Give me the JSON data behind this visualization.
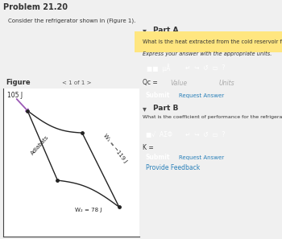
{
  "title": "Problem 21.20",
  "consider_text": "Consider the refrigerator shown in (Figure 1).",
  "figure_text": "Figure",
  "page_text": "< 1 of 1 >",
  "part_a_title": "Part A",
  "part_a_q": "What is the heat extracted from the cold reservoir for the refrigerator?",
  "part_a_sub": "Express your answer with the appropriate units.",
  "qc_label": "Qc =",
  "value_placeholder": "Value",
  "units_placeholder": "Units",
  "submit_text": "Submit",
  "request_answer": "Request Answer",
  "part_b_title": "Part B",
  "part_b_q": "What is the coefficient of performance for the refrigerator shown in the following figure?",
  "k_label": "K =",
  "provide_feedback": "Provide Feedback",
  "bg_color": "#f0f0f0",
  "white": "#ffffff",
  "light_blue_box": "#d6eaf8",
  "light_blue_border": "#aed6f1",
  "submit_btn_color": "#2980b9",
  "toolbar_color": "#5b9bd5",
  "toolbar_dark": "#4a86c8",
  "input_border": "#b0b0b0",
  "text_dark": "#333333",
  "text_mid": "#555555",
  "text_link": "#2980b9",
  "highlight_yellow": "#ffe680",
  "arrow_color": "#9b59b6",
  "curve_color": "#222222",
  "label_105": "105 J",
  "label_w1": "W₁ = −119 J",
  "label_adiabats": "Adiabats",
  "label_w2": "W₂ = 78 J"
}
